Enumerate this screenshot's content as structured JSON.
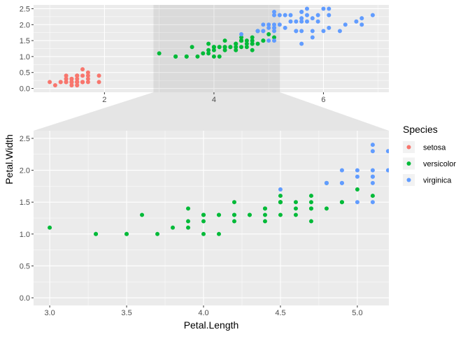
{
  "chart_data": {
    "type": "scatter",
    "xlabel": "Petal.Length",
    "ylabel": "Petal.Width",
    "overview": {
      "xlim": [
        0.705,
        7.195
      ],
      "ylim": [
        -0.12,
        2.62
      ],
      "xticks": [
        2,
        4,
        6
      ],
      "yticks": [
        0,
        0.5,
        1,
        1.5,
        2,
        2.5
      ]
    },
    "zoom": {
      "xlim": [
        2.895,
        5.205
      ],
      "ylim": [
        -0.12,
        2.62
      ],
      "xticks": [
        3,
        3.5,
        4,
        4.5,
        5
      ],
      "yticks": [
        0,
        0.5,
        1,
        1.5,
        2,
        2.5
      ]
    },
    "legend": {
      "title": "Species",
      "placement": "right"
    },
    "series": [
      {
        "name": "setosa",
        "color": "#F8766D",
        "points": [
          [
            1.4,
            0.2
          ],
          [
            1.4,
            0.2
          ],
          [
            1.3,
            0.2
          ],
          [
            1.5,
            0.2
          ],
          [
            1.4,
            0.2
          ],
          [
            1.7,
            0.4
          ],
          [
            1.4,
            0.3
          ],
          [
            1.5,
            0.2
          ],
          [
            1.4,
            0.2
          ],
          [
            1.5,
            0.1
          ],
          [
            1.5,
            0.2
          ],
          [
            1.6,
            0.2
          ],
          [
            1.4,
            0.1
          ],
          [
            1.1,
            0.1
          ],
          [
            1.2,
            0.2
          ],
          [
            1.5,
            0.4
          ],
          [
            1.3,
            0.4
          ],
          [
            1.4,
            0.3
          ],
          [
            1.7,
            0.3
          ],
          [
            1.5,
            0.3
          ],
          [
            1.7,
            0.2
          ],
          [
            1.5,
            0.4
          ],
          [
            1.0,
            0.2
          ],
          [
            1.7,
            0.5
          ],
          [
            1.9,
            0.2
          ],
          [
            1.6,
            0.2
          ],
          [
            1.6,
            0.4
          ],
          [
            1.5,
            0.2
          ],
          [
            1.4,
            0.2
          ],
          [
            1.6,
            0.2
          ],
          [
            1.6,
            0.2
          ],
          [
            1.5,
            0.4
          ],
          [
            1.5,
            0.1
          ],
          [
            1.4,
            0.2
          ],
          [
            1.5,
            0.2
          ],
          [
            1.2,
            0.2
          ],
          [
            1.3,
            0.2
          ],
          [
            1.4,
            0.1
          ],
          [
            1.3,
            0.2
          ],
          [
            1.5,
            0.2
          ],
          [
            1.3,
            0.3
          ],
          [
            1.3,
            0.3
          ],
          [
            1.3,
            0.2
          ],
          [
            1.6,
            0.6
          ],
          [
            1.9,
            0.4
          ],
          [
            1.4,
            0.3
          ],
          [
            1.6,
            0.2
          ],
          [
            1.4,
            0.2
          ],
          [
            1.5,
            0.2
          ],
          [
            1.4,
            0.2
          ]
        ]
      },
      {
        "name": "versicolor",
        "color": "#00BA38",
        "points": [
          [
            4.7,
            1.4
          ],
          [
            4.5,
            1.5
          ],
          [
            4.9,
            1.5
          ],
          [
            4.0,
            1.3
          ],
          [
            4.6,
            1.5
          ],
          [
            4.5,
            1.3
          ],
          [
            4.7,
            1.6
          ],
          [
            3.3,
            1.0
          ],
          [
            4.6,
            1.3
          ],
          [
            3.9,
            1.4
          ],
          [
            3.5,
            1.0
          ],
          [
            4.2,
            1.5
          ],
          [
            4.0,
            1.0
          ],
          [
            4.7,
            1.4
          ],
          [
            3.6,
            1.3
          ],
          [
            4.4,
            1.4
          ],
          [
            4.5,
            1.5
          ],
          [
            4.1,
            1.0
          ],
          [
            4.5,
            1.5
          ],
          [
            3.9,
            1.1
          ],
          [
            4.8,
            1.8
          ],
          [
            4.0,
            1.3
          ],
          [
            4.9,
            1.5
          ],
          [
            4.7,
            1.2
          ],
          [
            4.3,
            1.3
          ],
          [
            4.4,
            1.4
          ],
          [
            4.8,
            1.4
          ],
          [
            5.0,
            1.7
          ],
          [
            4.5,
            1.5
          ],
          [
            3.5,
            1.0
          ],
          [
            3.8,
            1.1
          ],
          [
            3.7,
            1.0
          ],
          [
            3.9,
            1.2
          ],
          [
            5.1,
            1.6
          ],
          [
            4.5,
            1.5
          ],
          [
            4.5,
            1.6
          ],
          [
            4.7,
            1.5
          ],
          [
            4.4,
            1.3
          ],
          [
            4.1,
            1.3
          ],
          [
            4.0,
            1.3
          ],
          [
            4.4,
            1.2
          ],
          [
            4.6,
            1.4
          ],
          [
            4.0,
            1.2
          ],
          [
            3.3,
            1.0
          ],
          [
            4.2,
            1.3
          ],
          [
            4.2,
            1.2
          ],
          [
            4.2,
            1.3
          ],
          [
            4.3,
            1.3
          ],
          [
            3.0,
            1.1
          ],
          [
            4.1,
            1.3
          ]
        ]
      },
      {
        "name": "virginica",
        "color": "#619CFF",
        "points": [
          [
            6.0,
            2.5
          ],
          [
            5.1,
            1.9
          ],
          [
            5.9,
            2.1
          ],
          [
            5.6,
            1.8
          ],
          [
            5.8,
            2.2
          ],
          [
            6.6,
            2.1
          ],
          [
            4.5,
            1.7
          ],
          [
            6.3,
            1.8
          ],
          [
            5.8,
            1.8
          ],
          [
            6.1,
            2.5
          ],
          [
            5.1,
            2.0
          ],
          [
            5.3,
            1.9
          ],
          [
            5.5,
            2.1
          ],
          [
            5.0,
            2.0
          ],
          [
            5.1,
            2.4
          ],
          [
            5.3,
            2.3
          ],
          [
            5.5,
            1.8
          ],
          [
            6.7,
            2.2
          ],
          [
            6.9,
            2.3
          ],
          [
            5.0,
            1.5
          ],
          [
            5.7,
            2.3
          ],
          [
            4.9,
            2.0
          ],
          [
            6.7,
            2.0
          ],
          [
            4.9,
            1.8
          ],
          [
            5.7,
            2.1
          ],
          [
            6.0,
            1.8
          ],
          [
            4.8,
            1.8
          ],
          [
            4.9,
            1.8
          ],
          [
            5.6,
            2.1
          ],
          [
            5.8,
            1.6
          ],
          [
            6.1,
            1.9
          ],
          [
            6.4,
            2.0
          ],
          [
            5.6,
            2.2
          ],
          [
            5.1,
            1.5
          ],
          [
            5.6,
            1.4
          ],
          [
            6.1,
            2.3
          ],
          [
            5.6,
            2.4
          ],
          [
            5.5,
            1.8
          ],
          [
            4.8,
            1.8
          ],
          [
            5.4,
            2.1
          ],
          [
            5.6,
            2.4
          ],
          [
            5.1,
            2.3
          ],
          [
            5.1,
            1.9
          ],
          [
            5.9,
            2.3
          ],
          [
            5.7,
            2.5
          ],
          [
            5.2,
            2.3
          ],
          [
            5.0,
            1.9
          ],
          [
            5.2,
            2.0
          ],
          [
            5.4,
            2.3
          ],
          [
            5.1,
            1.8
          ]
        ]
      }
    ]
  }
}
